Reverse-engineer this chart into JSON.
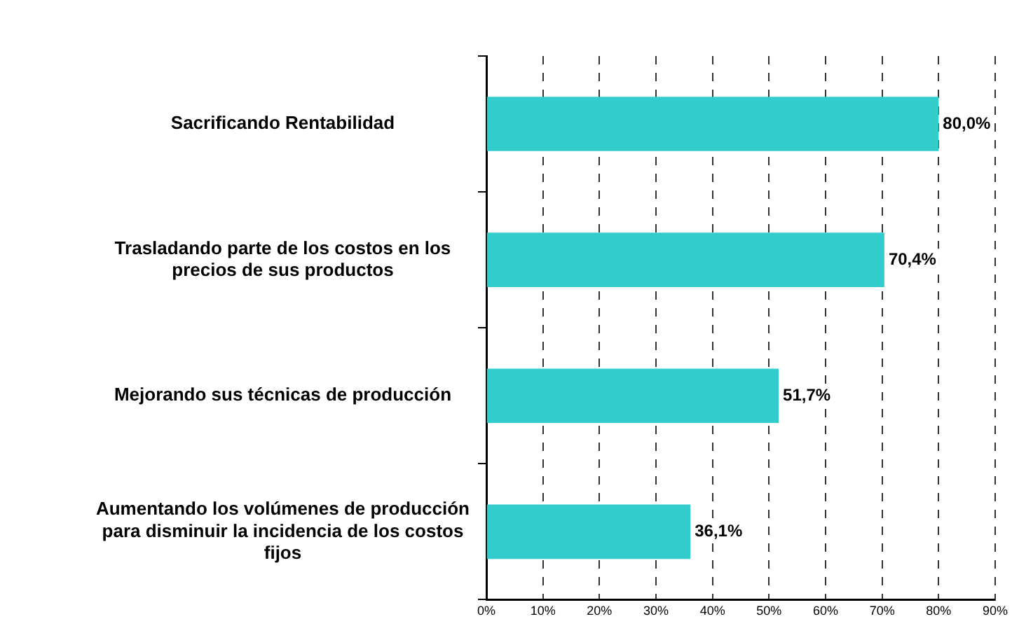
{
  "chart_data": {
    "type": "bar",
    "orientation": "horizontal",
    "categories": [
      "Sacrificando Rentabilidad",
      "Trasladando parte de los costos en los precios de sus productos",
      "Mejorando sus técnicas de producción",
      "Aumentando los volúmenes de producción para disminuir la incidencia de los costos fijos"
    ],
    "values": [
      80.0,
      70.4,
      51.7,
      36.1
    ],
    "value_labels": [
      "80,0%",
      "70,4%",
      "51,7%",
      "36,1%"
    ],
    "color": "#33cccc",
    "xlim": [
      0,
      90
    ],
    "xticks": [
      {
        "value": 0,
        "label": "0%"
      },
      {
        "value": 10,
        "label": "10%"
      },
      {
        "value": 20,
        "label": "20%"
      },
      {
        "value": 30,
        "label": "30%"
      },
      {
        "value": 40,
        "label": "40%"
      },
      {
        "value": 50,
        "label": "50%"
      },
      {
        "value": 60,
        "label": "60%"
      },
      {
        "value": 70,
        "label": "70%"
      },
      {
        "value": 80,
        "label": "80%"
      },
      {
        "value": 90,
        "label": "90%"
      }
    ],
    "grid": "x",
    "legend": false
  }
}
